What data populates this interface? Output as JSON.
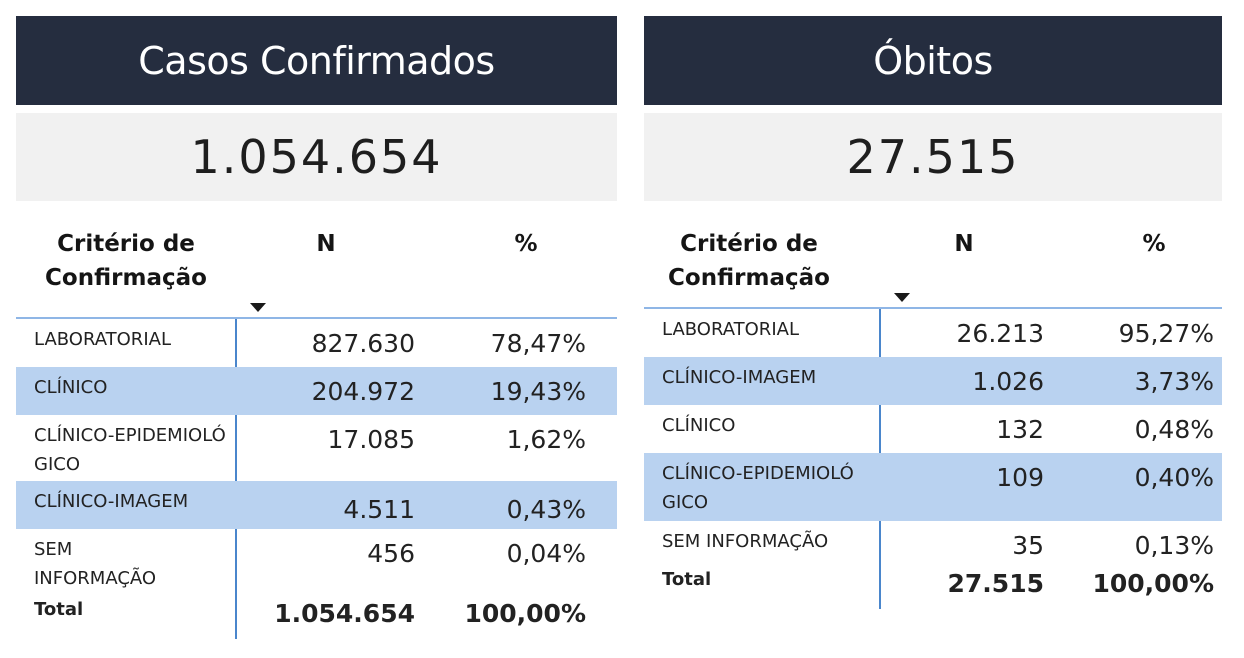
{
  "casos": {
    "title": "Casos Confirmados",
    "total_value": "1.054.654",
    "headers": {
      "criterio": "Critério de Confirmação",
      "n": "N",
      "pct": "%"
    },
    "rows": [
      {
        "criterio": "LABORATORIAL",
        "n": "827.630",
        "pct": "78,47%"
      },
      {
        "criterio": "CLÍNICO",
        "n": "204.972",
        "pct": "19,43%"
      },
      {
        "criterio": "CLÍNICO-EPIDEMIOLÓGICO",
        "n": "17.085",
        "pct": "1,62%"
      },
      {
        "criterio": "CLÍNICO-IMAGEM",
        "n": "4.511",
        "pct": "0,43%"
      },
      {
        "criterio": "SEM INFORMAÇÃO",
        "n": "456",
        "pct": "0,04%"
      }
    ],
    "total": {
      "label": "Total",
      "n": "1.054.654",
      "pct": "100,00%"
    }
  },
  "obitos": {
    "title": "Óbitos",
    "total_value": "27.515",
    "headers": {
      "criterio": "Critério de Confirmação",
      "n": "N",
      "pct": "%"
    },
    "rows": [
      {
        "criterio": "LABORATORIAL",
        "n": "26.213",
        "pct": "95,27%"
      },
      {
        "criterio": "CLÍNICO-IMAGEM",
        "n": "1.026",
        "pct": "3,73%"
      },
      {
        "criterio": "CLÍNICO",
        "n": "132",
        "pct": "0,48%"
      },
      {
        "criterio": "CLÍNICO-EPIDEMIOLÓGICO",
        "n": "109",
        "pct": "0,40%"
      },
      {
        "criterio": "SEM INFORMAÇÃO",
        "n": "35",
        "pct": "0,13%"
      }
    ],
    "total": {
      "label": "Total",
      "n": "27.515",
      "pct": "100,00%"
    }
  },
  "colors": {
    "title_bg": "#252d3f",
    "kpi_bg": "#f1f1f1",
    "row_highlight": "#b9d2f0",
    "divider": "#4a86cc"
  }
}
